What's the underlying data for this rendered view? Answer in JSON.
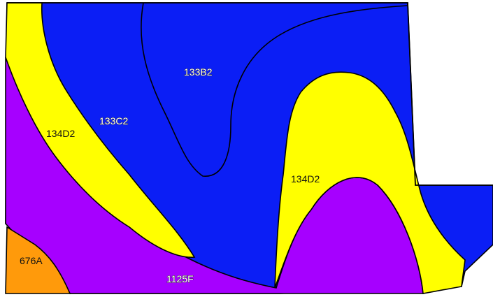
{
  "map": {
    "colors": {
      "unit_133B2": "#0b1ef5",
      "unit_133C2": "#0b1ef5",
      "unit_134D2": "#ffff00",
      "unit_1125F": "#a600ff",
      "unit_676A": "#ff9a0b",
      "boundary": "#000000",
      "background": "#ffffff"
    },
    "units": [
      {
        "symbol": "133B2",
        "color": "blue"
      },
      {
        "symbol": "133C2",
        "color": "blue"
      },
      {
        "symbol": "134D2",
        "color": "yellow"
      },
      {
        "symbol": "134D2",
        "color": "yellow"
      },
      {
        "symbol": "1125F",
        "color": "purple"
      },
      {
        "symbol": "676A",
        "color": "orange"
      }
    ]
  }
}
